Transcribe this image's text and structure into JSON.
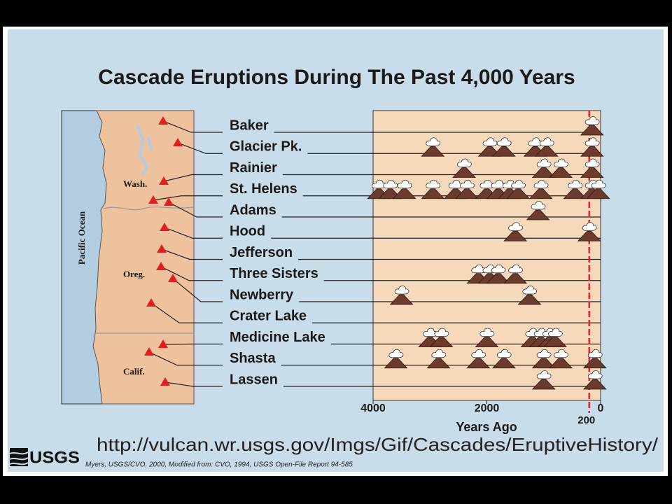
{
  "chart_data": {
    "type": "eruption-timeline",
    "title": "Cascade Eruptions During The Past 4,000 Years",
    "categories": [
      "Baker",
      "Glacier Pk.",
      "Rainier",
      "St. Helens",
      "Adams",
      "Hood",
      "Jefferson",
      "Three Sisters",
      "Newberry",
      "Crater Lake",
      "Medicine Lake",
      "Shasta",
      "Lassen"
    ],
    "eruptions": [
      [
        150
      ],
      [
        2950,
        1950,
        1700,
        1150,
        950,
        150
      ],
      [
        2400,
        1000,
        700,
        150
      ],
      [
        3900,
        3700,
        3450,
        2950,
        2550,
        2350,
        2000,
        1800,
        1600,
        1450,
        1050,
        450,
        150,
        40
      ],
      [
        1100
      ],
      [
        1500,
        200
      ],
      [],
      [
        2150,
        1950,
        1800,
        1500
      ],
      [
        3500,
        1250
      ],
      [],
      [
        3000,
        2800,
        2000,
        1200,
        1050,
        900,
        800
      ],
      [
        3600,
        2850,
        2150,
        1700,
        1000,
        700,
        100
      ],
      [
        1000,
        100
      ]
    ],
    "marker_color": "#6b3b2e",
    "xlabel": "Years Ago",
    "xlim": [
      4000,
      0
    ],
    "xticks": [
      4000,
      2000,
      0
    ],
    "reference_line": 200,
    "reference_color": "#e3262b"
  },
  "map": {
    "ocean_label": "Pacific Ocean",
    "states": [
      "Wash.",
      "Oreg.",
      "Calif."
    ]
  },
  "footer": {
    "logo": "USGS",
    "url": "http://vulcan.wr.usgs.gov/Imgs/Gif/Cascades/EruptiveHistory/",
    "credit": "Myers, USGS/CVO, 2000, Modified from: CVO, 1994, USGS Open-File Report 94-585"
  }
}
